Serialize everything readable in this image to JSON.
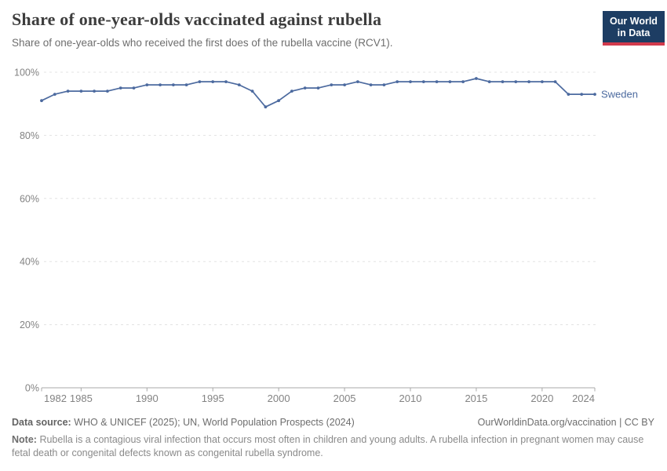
{
  "header": {
    "title": "Share of one-year-olds vaccinated against rubella",
    "subtitle": "Share of one-year-olds who received the first does of the rubella vaccine (RCV1).",
    "logo": {
      "line1": "Our World",
      "line2": "in Data",
      "bg_color": "#1d3d63",
      "accent_color": "#d23a4c"
    }
  },
  "chart_data": {
    "type": "line",
    "title": "Share of one-year-olds vaccinated against rubella",
    "xlabel": "",
    "ylabel": "",
    "xlim": [
      1982,
      2024
    ],
    "ylim": [
      0,
      100
    ],
    "grid": "horizontal-dashed",
    "legend_position": "end-of-line-label",
    "x_ticks": [
      1982,
      1985,
      1990,
      1995,
      2000,
      2005,
      2010,
      2015,
      2020,
      2024
    ],
    "y_ticks": [
      {
        "value": 0,
        "label": "0%"
      },
      {
        "value": 20,
        "label": "20%"
      },
      {
        "value": 40,
        "label": "40%"
      },
      {
        "value": 60,
        "label": "60%"
      },
      {
        "value": 80,
        "label": "80%"
      },
      {
        "value": 100,
        "label": "100%"
      }
    ],
    "series": [
      {
        "name": "Sweden",
        "color": "#4c6a9f",
        "x": [
          1982,
          1983,
          1984,
          1985,
          1986,
          1987,
          1988,
          1989,
          1990,
          1991,
          1992,
          1993,
          1994,
          1995,
          1996,
          1997,
          1998,
          1999,
          2000,
          2001,
          2002,
          2003,
          2004,
          2005,
          2006,
          2007,
          2008,
          2009,
          2010,
          2011,
          2012,
          2013,
          2014,
          2015,
          2016,
          2017,
          2018,
          2019,
          2020,
          2021,
          2022,
          2023,
          2024
        ],
        "values": [
          91,
          93,
          94,
          94,
          94,
          94,
          95,
          95,
          96,
          96,
          96,
          96,
          97,
          97,
          97,
          96,
          94,
          89,
          91,
          94,
          95,
          95,
          96,
          96,
          97,
          96,
          96,
          97,
          97,
          97,
          97,
          97,
          97,
          98,
          97,
          97,
          97,
          97,
          97,
          97,
          93,
          93,
          93
        ]
      }
    ],
    "colors": {
      "gridline": "#e3e3e3",
      "axis_line": "#a8a8a8",
      "tick_label": "#838383"
    }
  },
  "footer": {
    "source_label": "Data source:",
    "source_text": "WHO & UNICEF (2025); UN, World Population Prospects (2024)",
    "credit": "OurWorldinData.org/vaccination | CC BY",
    "note_label": "Note:",
    "note_text": "Rubella is a contagious viral infection that occurs most often in children and young adults. A rubella infection in pregnant women may cause fetal death or congenital defects known as congenital rubella syndrome."
  }
}
